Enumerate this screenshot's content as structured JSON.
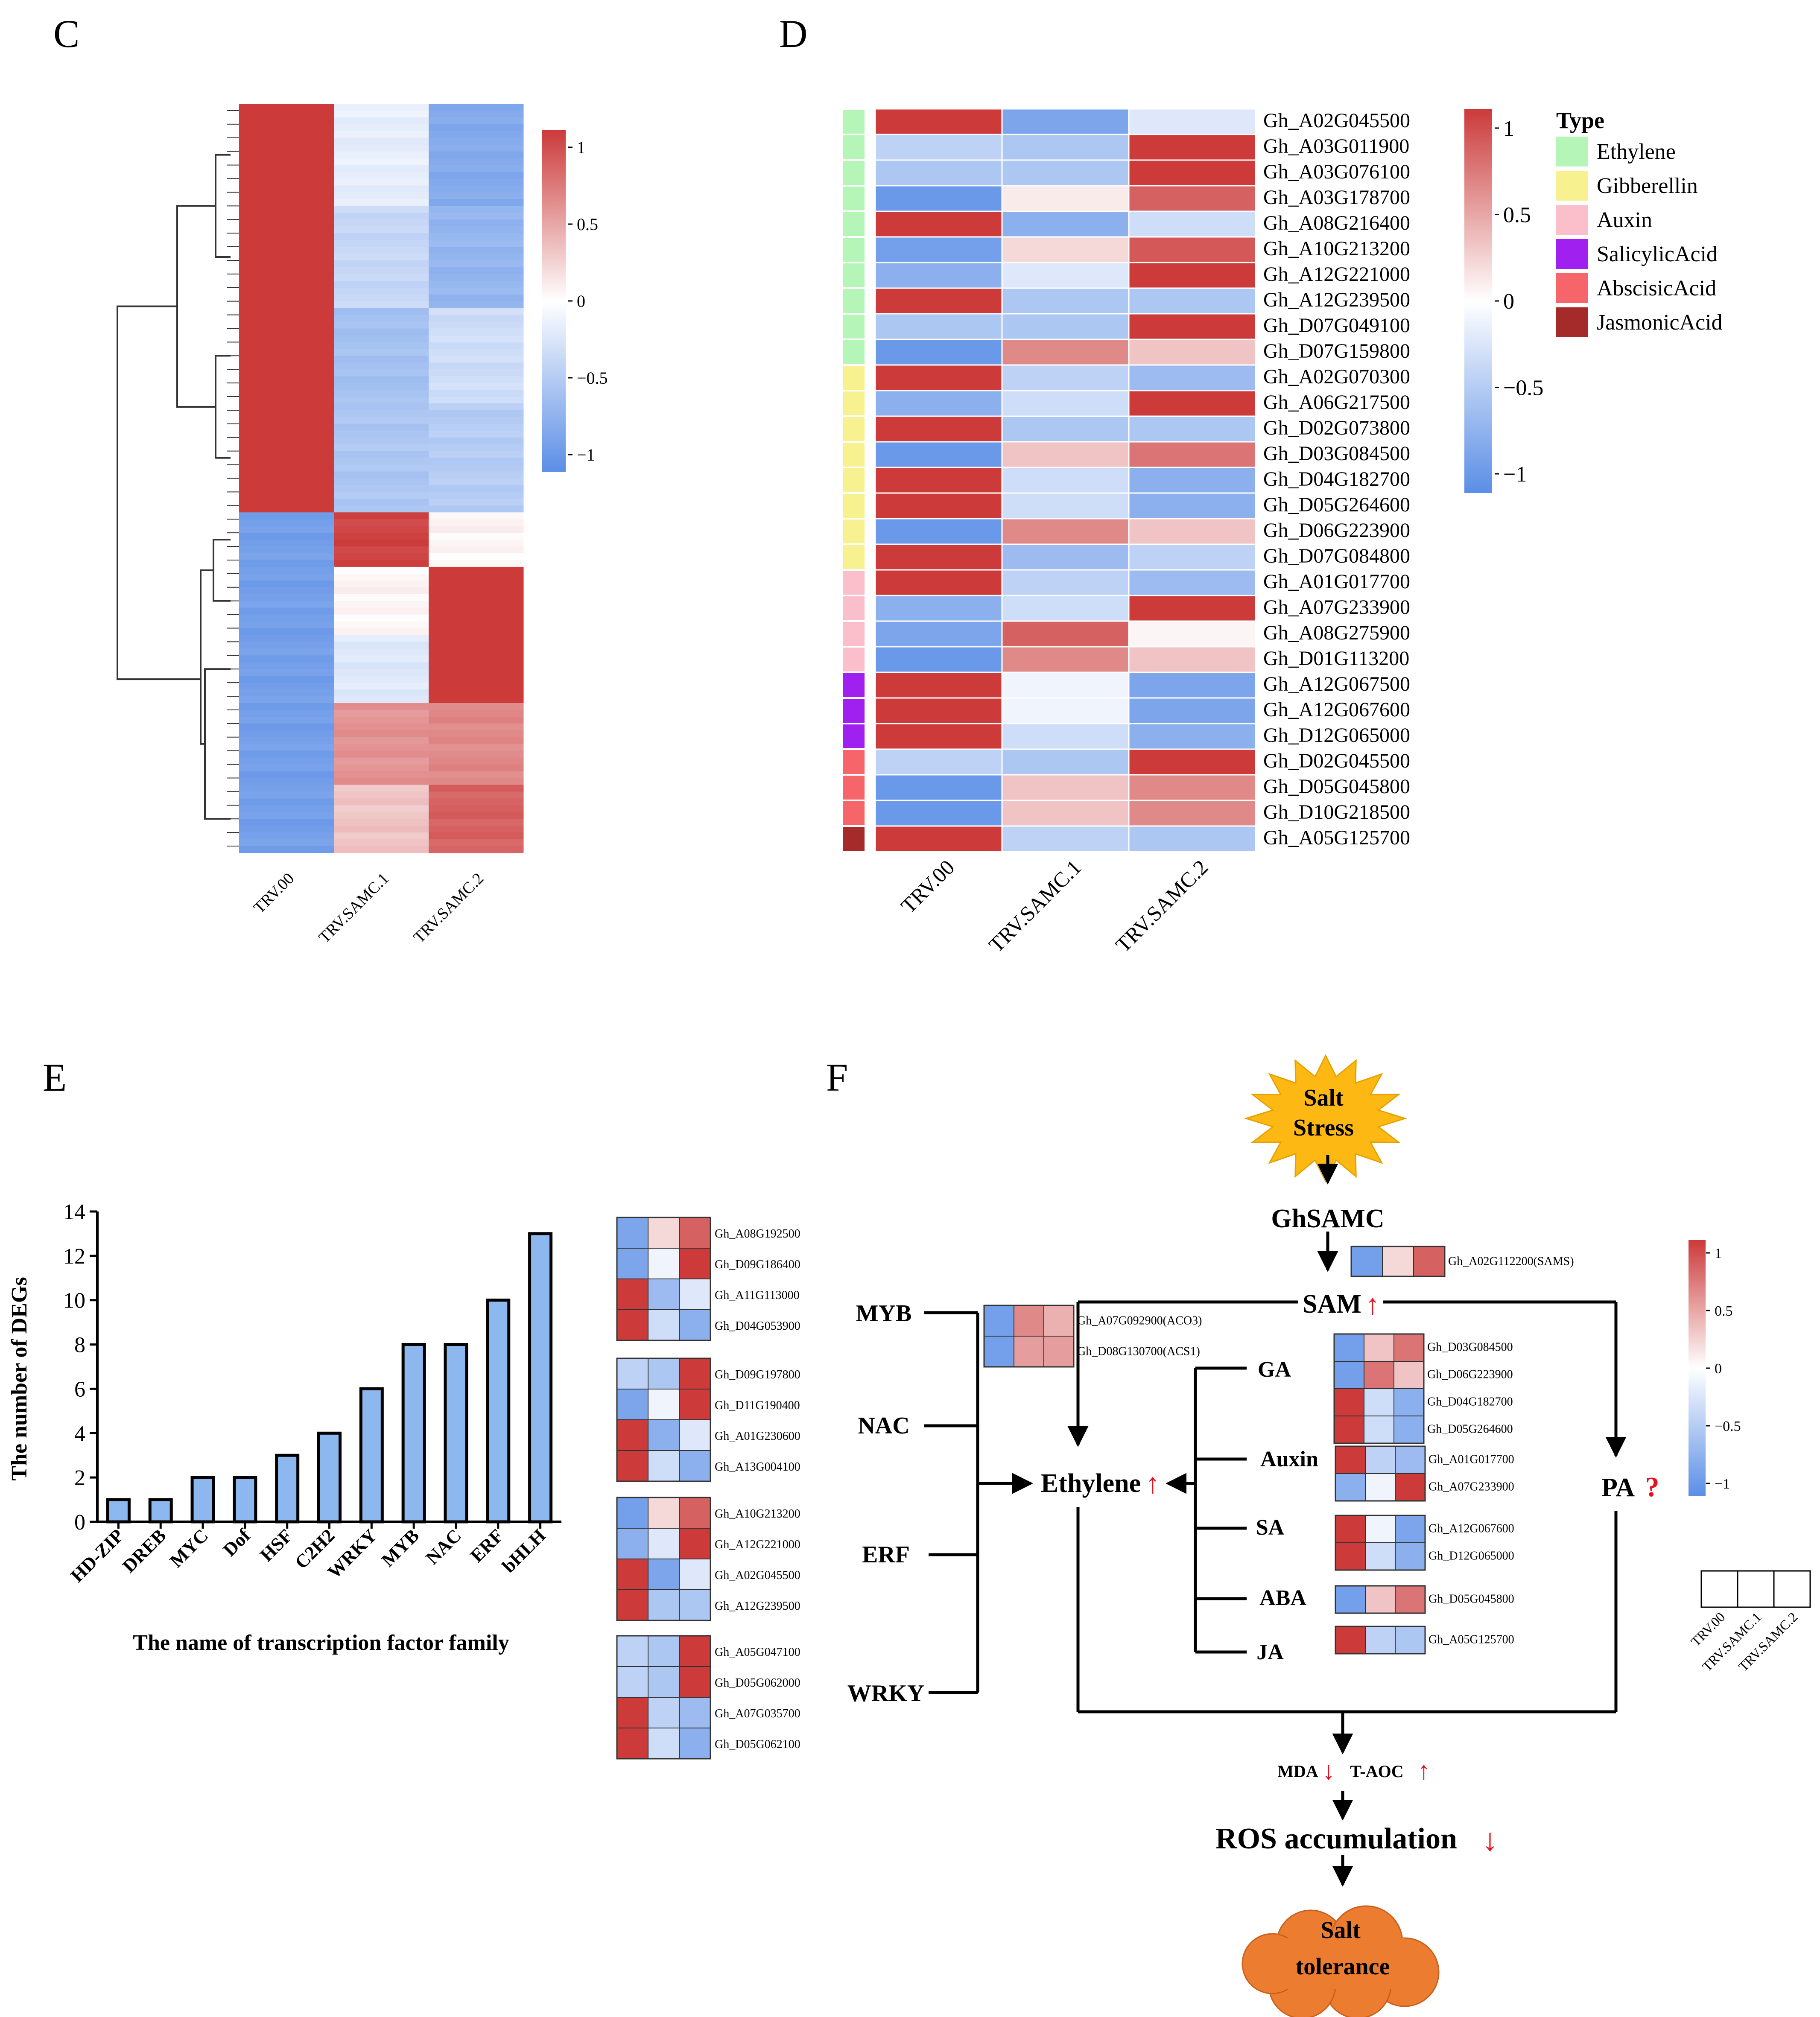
{
  "colors": {
    "low": "#5b8ee6",
    "mid": "#ffffff",
    "high": "#cc3a3a",
    "bar_fill": "#8db8ef",
    "arrow_red": "#e8111c",
    "sun_fill": "#fdb813",
    "cloud_fill": "#ec7c30"
  },
  "chart_data": [
    {
      "panel": "C",
      "type": "heatmap",
      "columns": [
        "TRV.00",
        "TRV.SAMC.1",
        "TRV.SAMC.2"
      ],
      "legend": {
        "ticks": [
          "1",
          "0.5",
          "0",
          "−0.5",
          "−1"
        ],
        "range": [
          -1,
          1
        ]
      },
      "row_blocks": [
        {
          "rows": 15,
          "values": [
            1.0,
            -0.15,
            -0.75
          ]
        },
        {
          "rows": 15,
          "values": [
            1.0,
            -0.35,
            -0.65
          ]
        },
        {
          "rows": 14,
          "values": [
            1.0,
            -0.55,
            -0.3
          ]
        },
        {
          "rows": 16,
          "values": [
            1.0,
            -0.5,
            -0.45
          ]
        },
        {
          "rows": 8,
          "values": [
            -0.85,
            0.95,
            0.05
          ]
        },
        {
          "rows": 10,
          "values": [
            -0.85,
            0.05,
            1.0
          ]
        },
        {
          "rows": 10,
          "values": [
            -0.85,
            -0.2,
            1.0
          ]
        },
        {
          "rows": 12,
          "values": [
            -0.85,
            0.55,
            0.6
          ]
        },
        {
          "rows": 10,
          "values": [
            -0.85,
            0.3,
            0.8
          ]
        }
      ]
    },
    {
      "panel": "D",
      "type": "heatmap",
      "columns": [
        "TRV.00",
        "TRV.SAMC.1",
        "TRV.SAMC.2"
      ],
      "legend": {
        "ticks": [
          "1",
          "0.5",
          "0",
          "−0.5",
          "−1"
        ],
        "range": [
          -1,
          1
        ]
      },
      "type_legend_title": "Type",
      "types": [
        {
          "name": "Ethylene",
          "color": "#b5f5b8"
        },
        {
          "name": "Gibberellin",
          "color": "#f8f190"
        },
        {
          "name": "Auxin",
          "color": "#fbbfcc"
        },
        {
          "name": "SalicylicAcid",
          "color": "#a020f0"
        },
        {
          "name": "AbscisicAcid",
          "color": "#f56569"
        },
        {
          "name": "JasmonicAcid",
          "color": "#a52a2a"
        }
      ],
      "rows": [
        {
          "gene": "Gh_A02G045500",
          "type": 0,
          "values": [
            1.0,
            -0.8,
            -0.2
          ]
        },
        {
          "gene": "Gh_A03G011900",
          "type": 0,
          "values": [
            -0.4,
            -0.5,
            1.0
          ]
        },
        {
          "gene": "Gh_A03G076100",
          "type": 0,
          "values": [
            -0.5,
            -0.5,
            1.0
          ]
        },
        {
          "gene": "Gh_A03G178700",
          "type": 0,
          "values": [
            -0.9,
            0.1,
            0.8
          ]
        },
        {
          "gene": "Gh_A08G216400",
          "type": 0,
          "values": [
            1.0,
            -0.7,
            -0.3
          ]
        },
        {
          "gene": "Gh_A10G213200",
          "type": 0,
          "values": [
            -0.85,
            0.2,
            0.85
          ]
        },
        {
          "gene": "Gh_A12G221000",
          "type": 0,
          "values": [
            -0.7,
            -0.2,
            1.0
          ]
        },
        {
          "gene": "Gh_A12G239500",
          "type": 0,
          "values": [
            1.0,
            -0.5,
            -0.5
          ]
        },
        {
          "gene": "Gh_D07G049100",
          "type": 0,
          "values": [
            -0.5,
            -0.5,
            1.0
          ]
        },
        {
          "gene": "Gh_D07G159800",
          "type": 0,
          "values": [
            -0.9,
            0.6,
            0.3
          ]
        },
        {
          "gene": "Gh_A02G070300",
          "type": 1,
          "values": [
            1.0,
            -0.4,
            -0.6
          ]
        },
        {
          "gene": "Gh_A06G217500",
          "type": 1,
          "values": [
            -0.7,
            -0.3,
            1.0
          ]
        },
        {
          "gene": "Gh_D02G073800",
          "type": 1,
          "values": [
            1.0,
            -0.5,
            -0.5
          ]
        },
        {
          "gene": "Gh_D03G084500",
          "type": 1,
          "values": [
            -0.9,
            0.3,
            0.7
          ]
        },
        {
          "gene": "Gh_D04G182700",
          "type": 1,
          "values": [
            1.0,
            -0.3,
            -0.7
          ]
        },
        {
          "gene": "Gh_D05G264600",
          "type": 1,
          "values": [
            1.0,
            -0.3,
            -0.7
          ]
        },
        {
          "gene": "Gh_D06G223900",
          "type": 1,
          "values": [
            -0.9,
            0.6,
            0.3
          ]
        },
        {
          "gene": "Gh_D07G084800",
          "type": 1,
          "values": [
            1.0,
            -0.6,
            -0.4
          ]
        },
        {
          "gene": "Gh_A01G017700",
          "type": 2,
          "values": [
            1.0,
            -0.4,
            -0.6
          ]
        },
        {
          "gene": "Gh_A07G233900",
          "type": 2,
          "values": [
            -0.7,
            -0.3,
            1.0
          ]
        },
        {
          "gene": "Gh_A08G275900",
          "type": 2,
          "values": [
            -0.8,
            0.8,
            0.05
          ]
        },
        {
          "gene": "Gh_D01G113200",
          "type": 2,
          "values": [
            -0.9,
            0.6,
            0.3
          ]
        },
        {
          "gene": "Gh_A12G067500",
          "type": 3,
          "values": [
            1.0,
            -0.1,
            -0.8
          ]
        },
        {
          "gene": "Gh_A12G067600",
          "type": 3,
          "values": [
            1.0,
            -0.1,
            -0.8
          ]
        },
        {
          "gene": "Gh_D12G065000",
          "type": 3,
          "values": [
            1.0,
            -0.3,
            -0.7
          ]
        },
        {
          "gene": "Gh_D02G045500",
          "type": 4,
          "values": [
            -0.4,
            -0.5,
            1.0
          ]
        },
        {
          "gene": "Gh_D05G045800",
          "type": 4,
          "values": [
            -0.9,
            0.3,
            0.6
          ]
        },
        {
          "gene": "Gh_D10G218500",
          "type": 4,
          "values": [
            -0.9,
            0.3,
            0.6
          ]
        },
        {
          "gene": "Gh_A05G125700",
          "type": 5,
          "values": [
            1.0,
            -0.4,
            -0.5
          ]
        }
      ]
    },
    {
      "panel": "E",
      "type": "bar",
      "title": "",
      "xlabel": "The name of transcription factor family",
      "ylabel": "The number of DEGs",
      "categories": [
        "HD-ZIP",
        "DREB",
        "MYC",
        "Dof",
        "HSF",
        "C2H2",
        "WRKY",
        "MYB",
        "NAC",
        "ERF",
        "bHLH"
      ],
      "values": [
        1,
        1,
        2,
        2,
        3,
        4,
        6,
        8,
        8,
        10,
        13
      ],
      "ylim": [
        0,
        14
      ],
      "yticks": [
        "0",
        "2",
        "4",
        "6",
        "8",
        "10",
        "12",
        "14"
      ]
    },
    {
      "panel": "E",
      "type": "heatmap",
      "groups": [
        {
          "rows": [
            {
              "gene": "Gh_A08G192500",
              "values": [
                -0.8,
                0.2,
                0.8
              ]
            },
            {
              "gene": "Gh_D09G186400",
              "values": [
                -0.8,
                -0.1,
                1.0
              ]
            },
            {
              "gene": "Gh_A11G113000",
              "values": [
                1.0,
                -0.6,
                -0.2
              ]
            },
            {
              "gene": "Gh_D04G053900",
              "values": [
                1.0,
                -0.3,
                -0.7
              ]
            }
          ]
        },
        {
          "rows": [
            {
              "gene": "Gh_D09G197800",
              "values": [
                -0.4,
                -0.5,
                1.0
              ]
            },
            {
              "gene": "Gh_D11G190400",
              "values": [
                -0.8,
                -0.1,
                1.0
              ]
            },
            {
              "gene": "Gh_A01G230600",
              "values": [
                1.0,
                -0.7,
                -0.2
              ]
            },
            {
              "gene": "Gh_A13G004100",
              "values": [
                1.0,
                -0.3,
                -0.7
              ]
            }
          ]
        },
        {
          "rows": [
            {
              "gene": "Gh_A10G213200",
              "values": [
                -0.85,
                0.2,
                0.8
              ]
            },
            {
              "gene": "Gh_A12G221000",
              "values": [
                -0.7,
                -0.2,
                1.0
              ]
            },
            {
              "gene": "Gh_A02G045500",
              "values": [
                1.0,
                -0.8,
                -0.2
              ]
            },
            {
              "gene": "Gh_A12G239500",
              "values": [
                1.0,
                -0.5,
                -0.5
              ]
            }
          ]
        },
        {
          "rows": [
            {
              "gene": "Gh_A05G047100",
              "values": [
                -0.4,
                -0.5,
                1.0
              ]
            },
            {
              "gene": "Gh_D05G062000",
              "values": [
                -0.4,
                -0.5,
                1.0
              ]
            },
            {
              "gene": "Gh_A07G035700",
              "values": [
                1.0,
                -0.4,
                -0.6
              ]
            },
            {
              "gene": "Gh_D05G062100",
              "values": [
                1.0,
                -0.3,
                -0.7
              ]
            }
          ]
        }
      ]
    },
    {
      "panel": "F",
      "type": "heatmap",
      "columns": [
        "TRV.00",
        "TRV.SAMC.1",
        "TRV.SAMC.2"
      ],
      "legend": {
        "ticks": [
          "1",
          "0.5",
          "0",
          "−0.5",
          "−1"
        ],
        "range": [
          -1,
          1
        ]
      },
      "sams": [
        {
          "gene": "Gh_A02G112200(SAMS)",
          "values": [
            -0.85,
            0.2,
            0.8
          ]
        }
      ],
      "ethylene_genes": [
        {
          "gene": "Gh_A07G092900(ACO3)",
          "values": [
            -0.85,
            0.6,
            0.4
          ]
        },
        {
          "gene": "Gh_D08G130700(ACS1)",
          "values": [
            -0.85,
            0.5,
            0.5
          ]
        }
      ],
      "ga": [
        {
          "gene": "Gh_D03G084500",
          "values": [
            -0.85,
            0.3,
            0.7
          ]
        },
        {
          "gene": "Gh_D06G223900",
          "values": [
            -0.85,
            0.7,
            0.3
          ]
        },
        {
          "gene": "Gh_D04G182700",
          "values": [
            1.0,
            -0.3,
            -0.7
          ]
        },
        {
          "gene": "Gh_D05G264600",
          "values": [
            1.0,
            -0.3,
            -0.7
          ]
        }
      ],
      "auxin": [
        {
          "gene": "Gh_A01G017700",
          "values": [
            1.0,
            -0.4,
            -0.6
          ]
        },
        {
          "gene": "Gh_A07G233900",
          "values": [
            -0.7,
            -0.1,
            1.0
          ]
        }
      ],
      "sa": [
        {
          "gene": "Gh_A12G067600",
          "values": [
            1.0,
            -0.1,
            -0.8
          ]
        },
        {
          "gene": "Gh_D12G065000",
          "values": [
            1.0,
            -0.3,
            -0.7
          ]
        }
      ],
      "aba": [
        {
          "gene": "Gh_D05G045800",
          "values": [
            -0.85,
            0.3,
            0.7
          ]
        }
      ],
      "ja": [
        {
          "gene": "Gh_A05G125700",
          "values": [
            1.0,
            -0.4,
            -0.5
          ]
        }
      ]
    }
  ],
  "panels": {
    "c_label": "C",
    "d_label": "D",
    "e_label": "E",
    "f_label": "F"
  },
  "pathway": {
    "salt_line1": "Salt",
    "salt_line2": "Stress",
    "ghsamc": "GhSAMC",
    "sam": "SAM",
    "up_arrow": "↑",
    "down_arrow": "↓",
    "question": "?",
    "tf_myb": "MYB",
    "tf_nac": "NAC",
    "tf_erf": "ERF",
    "tf_wrky": "WRKY",
    "ethylene": "Ethylene",
    "pa": "PA",
    "hormone_ga": "GA",
    "hormone_auxin": "Auxin",
    "hormone_sa": "SA",
    "hormone_aba": "ABA",
    "hormone_ja": "JA",
    "mda": "MDA",
    "taoc": "T-AOC",
    "ros": "ROS accumulation",
    "tol_line1": "Salt",
    "tol_line2": "tolerance"
  }
}
